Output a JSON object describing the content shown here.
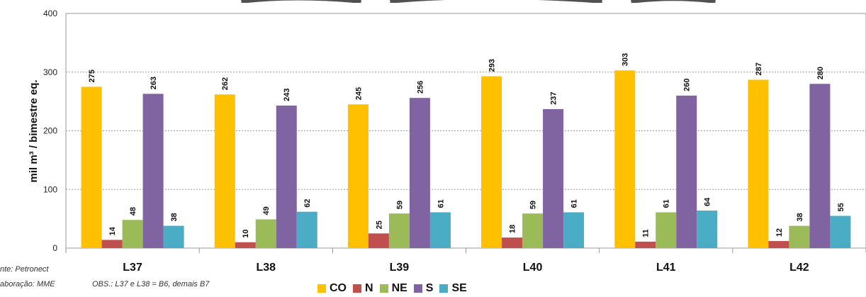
{
  "chart_data": {
    "type": "bar",
    "title": "",
    "ylabel": "mil m³ / bimestre eq.",
    "xlabel": "",
    "ylim": [
      0,
      400
    ],
    "yticks": [
      0,
      100,
      200,
      300,
      400
    ],
    "categories": [
      "L37",
      "L38",
      "L39",
      "L40",
      "L41",
      "L42"
    ],
    "series": [
      {
        "name": "CO",
        "color": "#FFC000",
        "values": [
          275,
          262,
          245,
          293,
          303,
          287
        ]
      },
      {
        "name": "N",
        "color": "#C0504D",
        "values": [
          14,
          10,
          25,
          18,
          11,
          12
        ]
      },
      {
        "name": "NE",
        "color": "#9BBB59",
        "values": [
          48,
          49,
          59,
          59,
          61,
          38
        ]
      },
      {
        "name": "S",
        "color": "#8064A2",
        "values": [
          263,
          243,
          256,
          237,
          260,
          280
        ]
      },
      {
        "name": "SE",
        "color": "#4BACC6",
        "values": [
          38,
          62,
          61,
          61,
          64,
          55
        ]
      }
    ],
    "grid": true,
    "gridStyle": "dashed-horizontal",
    "legend_position": "bottom-center"
  },
  "notes": {
    "source": "nte: Petronect",
    "elaboration": "aboração:  MME",
    "obs": "OBS.: L37 e L38 = B6, demais B7"
  }
}
